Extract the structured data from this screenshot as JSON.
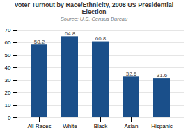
{
  "chart_data": {
    "type": "bar",
    "title": "Voter Turnout by Race/Ethnicity, 2008 US Presidential Election",
    "subtitle": "Source: U.S. Census Bureau",
    "categories": [
      "All Races",
      "White",
      "Black",
      "Asian",
      "Hispanic"
    ],
    "values": [
      58.2,
      64.8,
      60.8,
      32.6,
      31.6
    ],
    "color": "#1a4f8a",
    "ylim": [
      0,
      70
    ],
    "yticks": [
      0,
      10,
      20,
      30,
      40,
      50,
      60,
      70
    ],
    "grid": true,
    "data_labels": true
  }
}
